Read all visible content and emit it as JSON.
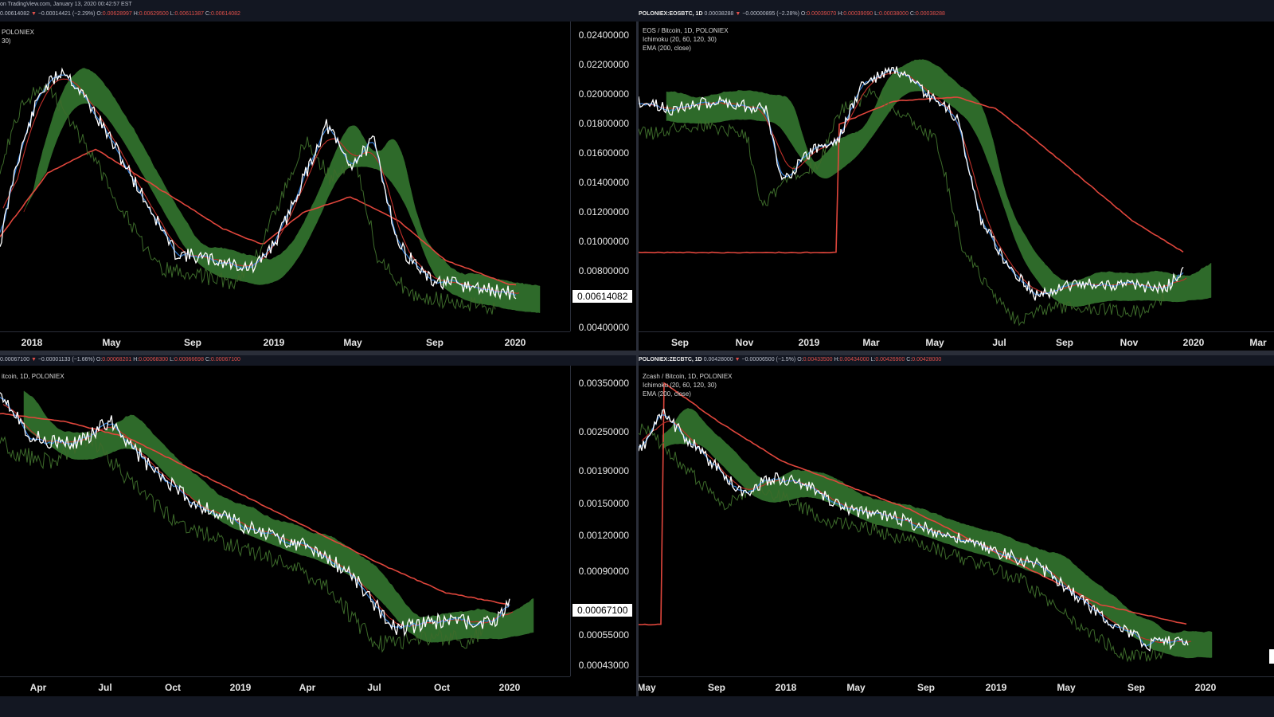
{
  "watermark": "on TradingView.com, January 13, 2020 00:42:57 EST",
  "panels": [
    {
      "id": "top-left",
      "ohlc": {
        "symbol": "",
        "last": "0.00614082",
        "arrow": "▼",
        "change": "−0.00014421 (−2.29%)",
        "O": "0.00628997",
        "H": "0.00629500",
        "L": "0.00611387",
        "C": "0.00614082"
      },
      "legend": [
        "POLONIEX",
        "30)"
      ],
      "price_labels": [
        "0.02400000",
        "0.02200000",
        "0.02000000",
        "0.01800000",
        "0.01600000",
        "0.01400000",
        "0.01200000",
        "0.01000000",
        "0.00800000",
        "0.00400000"
      ],
      "current_price": "0.00614082",
      "time_labels": [
        "2018",
        "May",
        "Sep",
        "2019",
        "May",
        "Sep",
        "2020"
      ]
    },
    {
      "id": "top-right",
      "ohlc": {
        "symbol": "POLONIEX:EOSBTC, 1D",
        "last": "0.00038288",
        "arrow": "▼",
        "change": "−0.00000895 (−2.28%)",
        "O": "0.00039070",
        "H": "0.00039090",
        "L": "0.00038000",
        "C": "0.00038288"
      },
      "legend": [
        "EOS / Bitcoin, 1D, POLONIEX",
        "Ichimoku (20, 60, 120, 30)",
        "EMA (200, close)"
      ],
      "time_labels": [
        "Sep",
        "Nov",
        "2019",
        "Mar",
        "May",
        "Jul",
        "Sep",
        "Nov",
        "2020",
        "Mar"
      ]
    },
    {
      "id": "bottom-left",
      "ohlc": {
        "symbol": "",
        "last": "0.00067100",
        "arrow": "▼",
        "change": "−0.00001133 (−1.66%)",
        "O": "0.00068201",
        "H": "0.00068300",
        "L": "0.00066698",
        "C": "0.00067100"
      },
      "legend": [
        "itcoin, 1D, POLONIEX"
      ],
      "price_labels": [
        "0.00350000",
        "0.00250000",
        "0.00190000",
        "0.00150000",
        "0.00120000",
        "0.00090000",
        "0.00055000",
        "0.00043000"
      ],
      "current_price": "0.00067100",
      "time_labels": [
        "Apr",
        "Jul",
        "Oct",
        "2019",
        "Apr",
        "Jul",
        "Oct",
        "2020"
      ]
    },
    {
      "id": "bottom-right",
      "ohlc": {
        "symbol": "POLONIEX:ZECBTC, 1D",
        "last": "0.00428000",
        "arrow": "▼",
        "change": "−0.00006500 (−1.5%)",
        "O": "0.00433500",
        "H": "0.00434000",
        "L": "0.00426900",
        "C": "0.00428000"
      },
      "legend": [
        "Zcash / Bitcoin, 1D, POLONIEX",
        "Ichimoku (20, 60, 120, 30)",
        "EMA (200, close)"
      ],
      "time_labels": [
        "May",
        "Sep",
        "2018",
        "May",
        "Sep",
        "2019",
        "May",
        "Sep",
        "2020"
      ]
    }
  ],
  "colors": {
    "price": "#ffffff",
    "tenkan": "#2f78d0",
    "kijun": "#c0302a",
    "ema": "#e0463c",
    "lagging": "#3c6a2a",
    "cloud_bear": "#a8241c",
    "cloud_bull": "#2f6a2a",
    "panel_bg": "#000000",
    "chrome_bg": "#131722"
  }
}
